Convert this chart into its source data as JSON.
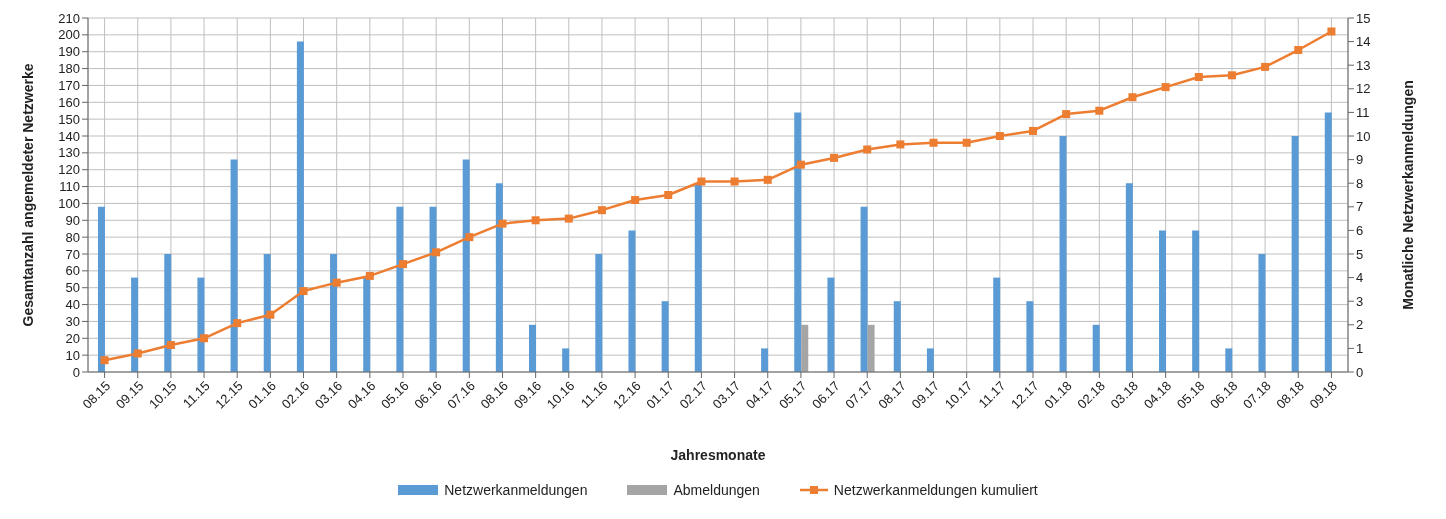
{
  "chart_data": {
    "type": "bar",
    "xlabel": "Jahresmonate",
    "ylabel": "Gesamtanzahl angemeldeter Netzwerke",
    "y2label": "Monatliche Netzwerkanmeldungen",
    "categories": [
      "08.15",
      "09.15",
      "10.15",
      "11.15",
      "12.15",
      "01.16",
      "02.16",
      "03.16",
      "04.16",
      "05.16",
      "06.16",
      "07.16",
      "08.16",
      "09.16",
      "10.16",
      "11.16",
      "12.16",
      "01.17",
      "02.17",
      "03.17",
      "04.17",
      "05.17",
      "06.17",
      "07.17",
      "08.17",
      "09.17",
      "10.17",
      "11.17",
      "12.17",
      "01.18",
      "02.18",
      "03.18",
      "04.18",
      "05.18",
      "06.18",
      "07.18",
      "08.18",
      "09.18"
    ],
    "series": [
      {
        "name": "Netzwerkanmeldungen",
        "axis": "y2",
        "color": "#5b9bd5",
        "values": [
          7,
          4,
          5,
          4,
          9,
          5,
          14,
          5,
          4,
          7,
          7,
          9,
          8,
          2,
          1,
          5,
          6,
          3,
          8,
          0,
          1,
          11,
          4,
          7,
          3,
          1,
          0,
          4,
          3,
          10,
          2,
          8,
          6,
          6,
          1,
          5,
          10,
          11
        ]
      },
      {
        "name": "Abmeldungen",
        "axis": "y2",
        "color": "#a5a5a5",
        "values": [
          0,
          0,
          0,
          0,
          0,
          0,
          0,
          0,
          0,
          0,
          0,
          0,
          0,
          0,
          0,
          0,
          0,
          0,
          0,
          0,
          0,
          2,
          0,
          2,
          0,
          0,
          0,
          0,
          0,
          0,
          0,
          0,
          0,
          0,
          0,
          0,
          0,
          0
        ]
      },
      {
        "name": "Netzwerkanmeldungen kumuliert",
        "type": "line",
        "color": "#ed7d31",
        "values": [
          7,
          11,
          16,
          20,
          29,
          34,
          48,
          53,
          57,
          64,
          71,
          80,
          88,
          90,
          91,
          96,
          102,
          105,
          113,
          113,
          114,
          123,
          127,
          132,
          135,
          136,
          136,
          140,
          143,
          153,
          155,
          163,
          169,
          175,
          176,
          181,
          191,
          202
        ]
      }
    ],
    "ylim": [
      0,
      210
    ],
    "yticks": [
      0,
      10,
      20,
      30,
      40,
      50,
      60,
      70,
      80,
      90,
      100,
      110,
      120,
      130,
      140,
      150,
      160,
      170,
      180,
      190,
      200,
      210
    ],
    "y2lim": [
      0,
      15
    ],
    "y2ticks": [
      0,
      1,
      2,
      3,
      4,
      5,
      6,
      7,
      8,
      9,
      10,
      11,
      12,
      13,
      14,
      15
    ],
    "grid": true,
    "legend": "bottom",
    "marker": "square",
    "line_style": "solid"
  }
}
